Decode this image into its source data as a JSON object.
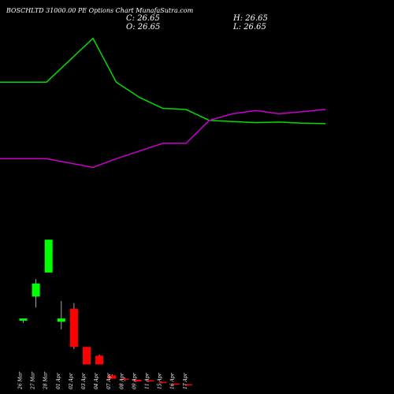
{
  "header": {
    "title": "BOSCHLTD 31000.00  PE Options  Chart MunafaSutra.com",
    "c_label": "C: 26.65",
    "h_label": "H: 26.65",
    "o_label": "O: 26.65",
    "l_label": "L: 26.65"
  },
  "colors": {
    "background": "#000000",
    "up": "#00ff00",
    "down": "#ff0000",
    "line_a": "#00dd00",
    "line_b": "#cc00cc",
    "text": "#ffffff"
  },
  "chart_data": {
    "type": "candlestick",
    "categories": [
      "26 Mar",
      "27 Mar",
      "28 Mar",
      "01 Apr",
      "02 Apr",
      "03 Apr",
      "04 Apr",
      "07 Apr",
      "08 Apr",
      "09 Apr",
      "11 Apr",
      "15 Apr",
      "16 Apr",
      "17 Apr"
    ],
    "candles": [
      {
        "open": 2.2,
        "close": 2.4,
        "high": 2.4,
        "low": 2.0,
        "color": "up"
      },
      {
        "open": 4.4,
        "close": 5.6,
        "high": 6.0,
        "low": 3.4,
        "color": "up"
      },
      {
        "open": 6.6,
        "close": 9.6,
        "high": 9.6,
        "low": 6.6,
        "color": "up"
      },
      {
        "open": 2.1,
        "close": 2.4,
        "high": 4.0,
        "low": 1.4,
        "color": "up"
      },
      {
        "open": 3.3,
        "close": -0.2,
        "high": 3.8,
        "low": -0.4,
        "color": "down"
      },
      {
        "open": -0.2,
        "close": -1.8,
        "high": -0.2,
        "low": -1.8,
        "color": "down"
      },
      {
        "open": -1.0,
        "close": -1.8,
        "high": -0.9,
        "low": -1.8,
        "color": "down"
      },
      {
        "open": -2.8,
        "close": -3.1,
        "high": -2.7,
        "low": -3.1,
        "color": "down"
      },
      {
        "open": -3.1,
        "close": -3.2,
        "high": -3.0,
        "low": -3.3,
        "color": "down"
      },
      {
        "open": -3.2,
        "close": -3.35,
        "high": -3.2,
        "low": -3.35,
        "color": "down"
      },
      {
        "open": -3.25,
        "close": -3.35,
        "high": -3.25,
        "low": -3.35,
        "color": "down"
      },
      {
        "open": -3.4,
        "close": -3.5,
        "high": -3.4,
        "low": -3.5,
        "color": "down"
      },
      {
        "open": -3.55,
        "close": -3.6,
        "high": -3.55,
        "low": -3.6,
        "color": "down"
      },
      {
        "open": -3.6,
        "close": -3.65,
        "high": -3.6,
        "low": -3.65,
        "color": "down"
      }
    ],
    "lines": [
      {
        "color": "line_a",
        "values": [
          24.0,
          24.0,
          26.0,
          28.0,
          24.0,
          22.6,
          21.6,
          21.5,
          20.5,
          20.4,
          20.3,
          20.35,
          20.25,
          20.2
        ]
      },
      {
        "color": "line_b",
        "values": [
          17.0,
          17.0,
          16.6,
          16.2,
          17.0,
          17.7,
          18.4,
          18.4,
          20.5,
          21.1,
          21.4,
          21.1,
          21.3,
          21.5
        ]
      }
    ],
    "ylim": [
      -4.5,
      31.5
    ]
  }
}
